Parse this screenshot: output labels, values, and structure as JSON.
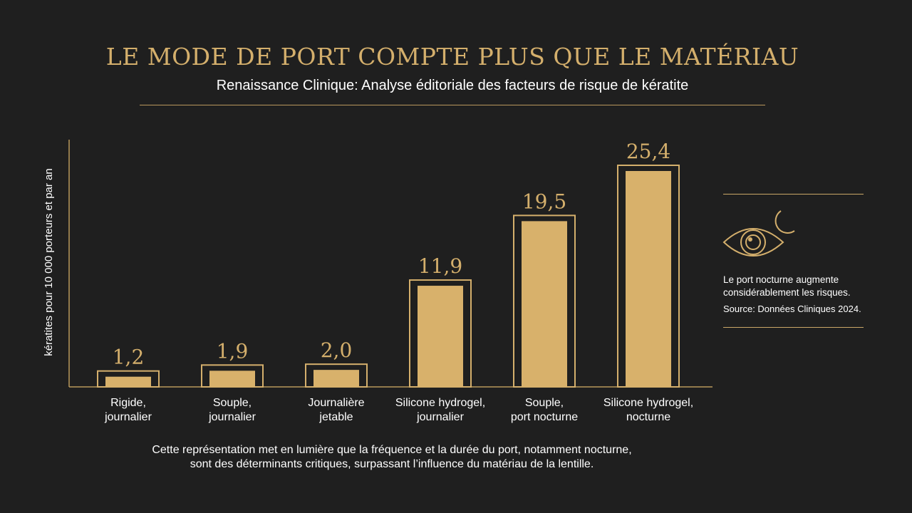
{
  "header": {
    "title": "LE MODE DE PORT COMPTE PLUS QUE LE MATÉRIAU",
    "subtitle": "Renaissance Clinique: Analyse éditoriale des facteurs de risque de kératite"
  },
  "chart_data": {
    "type": "bar",
    "categories": [
      [
        "Rigide,",
        "journalier"
      ],
      [
        "Souple,",
        "journalier"
      ],
      [
        "Journalière",
        "jetable"
      ],
      [
        "Silicone hydrogel,",
        "journalier"
      ],
      [
        "Souple,",
        "port nocturne"
      ],
      [
        "Silicone hydrogel,",
        "nocturne"
      ]
    ],
    "values": [
      1.2,
      1.9,
      2.0,
      11.9,
      19.5,
      25.4
    ],
    "data_labels": [
      "1,2",
      "1,9",
      "2,0",
      "11,9",
      "19,5",
      "25,4"
    ],
    "ylabel": "kératites pour 10 000 porteurs et par an",
    "xlabel": "",
    "ylim": [
      0,
      25.4
    ],
    "grid": false,
    "legend": "none"
  },
  "side_panel": {
    "icon": "eye-moon-icon",
    "note": "Le port nocturne augmente considérablement les risques.",
    "source": "Source: Données Cliniques 2024."
  },
  "caption": {
    "line1": "Cette représentation met en lumière que la fréquence et la durée du port, notamment nocturne,",
    "line2": "sont des déterminants critiques, surpassant l’influence du matériau de la lentille."
  },
  "colors": {
    "background": "#1f1f1f",
    "accent": "#d4af6c",
    "bar_fill": "#d8b16b",
    "text": "#ffffff"
  }
}
